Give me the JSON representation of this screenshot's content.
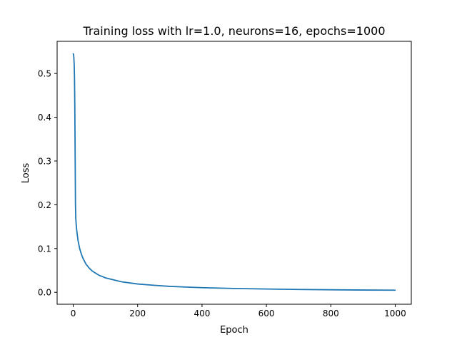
{
  "chart_data": {
    "type": "line",
    "title": "Training loss with lr=1.0, neurons=16, epochs=1000",
    "xlabel": "Epoch",
    "ylabel": "Loss",
    "xlim": [
      -50,
      1050
    ],
    "ylim": [
      -0.0273,
      0.5735
    ],
    "xticks": [
      0,
      200,
      400,
      600,
      800,
      1000
    ],
    "xtick_labels": [
      "0",
      "200",
      "400",
      "600",
      "800",
      "1000"
    ],
    "yticks": [
      0.0,
      0.1,
      0.2,
      0.3,
      0.4,
      0.5
    ],
    "ytick_labels": [
      "0.0",
      "0.1",
      "0.2",
      "0.3",
      "0.4",
      "0.5"
    ],
    "grid": false,
    "legend": null,
    "line_color": "#1f77b4",
    "series": [
      {
        "x": [
          0,
          1,
          2,
          3,
          4,
          5,
          6,
          7,
          8,
          10,
          12,
          15,
          20,
          25,
          30,
          40,
          50,
          60,
          80,
          100,
          150,
          200,
          250,
          300,
          400,
          500,
          600,
          700,
          800,
          900,
          1000
        ],
        "values": [
          0.545,
          0.544,
          0.535,
          0.52,
          0.49,
          0.42,
          0.31,
          0.2,
          0.168,
          0.148,
          0.135,
          0.118,
          0.1,
          0.088,
          0.078,
          0.064,
          0.055,
          0.048,
          0.039,
          0.033,
          0.024,
          0.019,
          0.016,
          0.0135,
          0.0105,
          0.0087,
          0.0075,
          0.0065,
          0.0058,
          0.0052,
          0.0048
        ]
      }
    ]
  }
}
